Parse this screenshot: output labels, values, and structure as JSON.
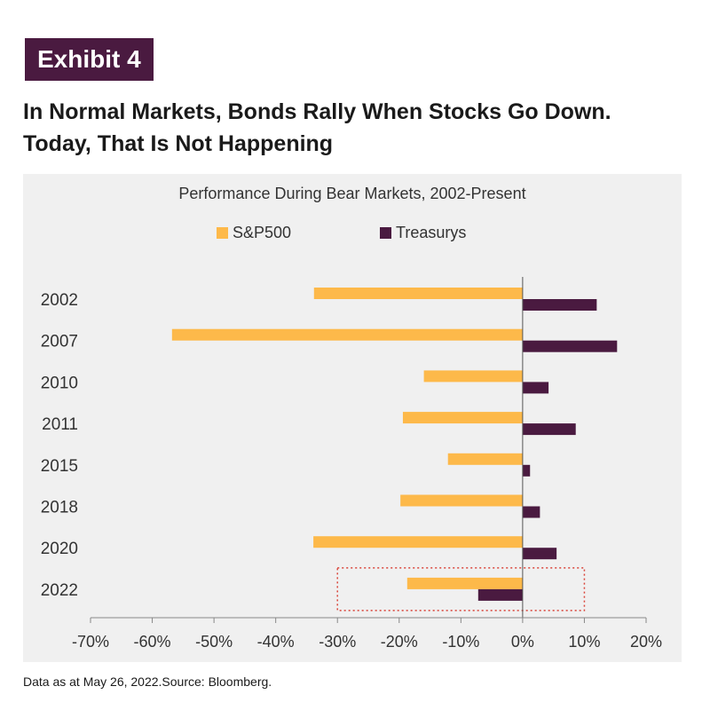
{
  "header": {
    "badge": "Exhibit 4",
    "headline_line1": "In Normal Markets, Bonds Rally When Stocks Go Down.",
    "headline_line2": "Today, That Is Not Happening"
  },
  "footnote": "Data as at May 26, 2022.Source: Bloomberg.",
  "colors": {
    "sp500": "#FDB94A",
    "treasurys": "#4A1A40",
    "highlight_box": "#D9453A"
  },
  "chart_data": {
    "type": "bar",
    "orientation": "horizontal",
    "title": "Performance During Bear Markets, 2002-Present",
    "categories": [
      "2002",
      "2007",
      "2010",
      "2011",
      "2015",
      "2018",
      "2020",
      "2022"
    ],
    "series": [
      {
        "name": "S&P500",
        "values": [
          -33.8,
          -56.8,
          -16.0,
          -19.4,
          -12.1,
          -19.8,
          -33.9,
          -18.7
        ]
      },
      {
        "name": "Treasurys",
        "values": [
          12.0,
          15.3,
          4.2,
          8.6,
          1.2,
          2.8,
          5.5,
          -7.2
        ]
      }
    ],
    "xlim": [
      -70,
      20
    ],
    "x_ticks": [
      "-70%",
      "-60%",
      "-50%",
      "-40%",
      "-30%",
      "-20%",
      "-10%",
      "0%",
      "10%",
      "20%"
    ],
    "x_tick_values": [
      -70,
      -60,
      -50,
      -40,
      -30,
      -20,
      -10,
      0,
      10,
      20
    ],
    "legend_position": "top-center",
    "grid": false,
    "highlight": {
      "category": "2022",
      "x_range": [
        -30,
        10
      ]
    }
  }
}
